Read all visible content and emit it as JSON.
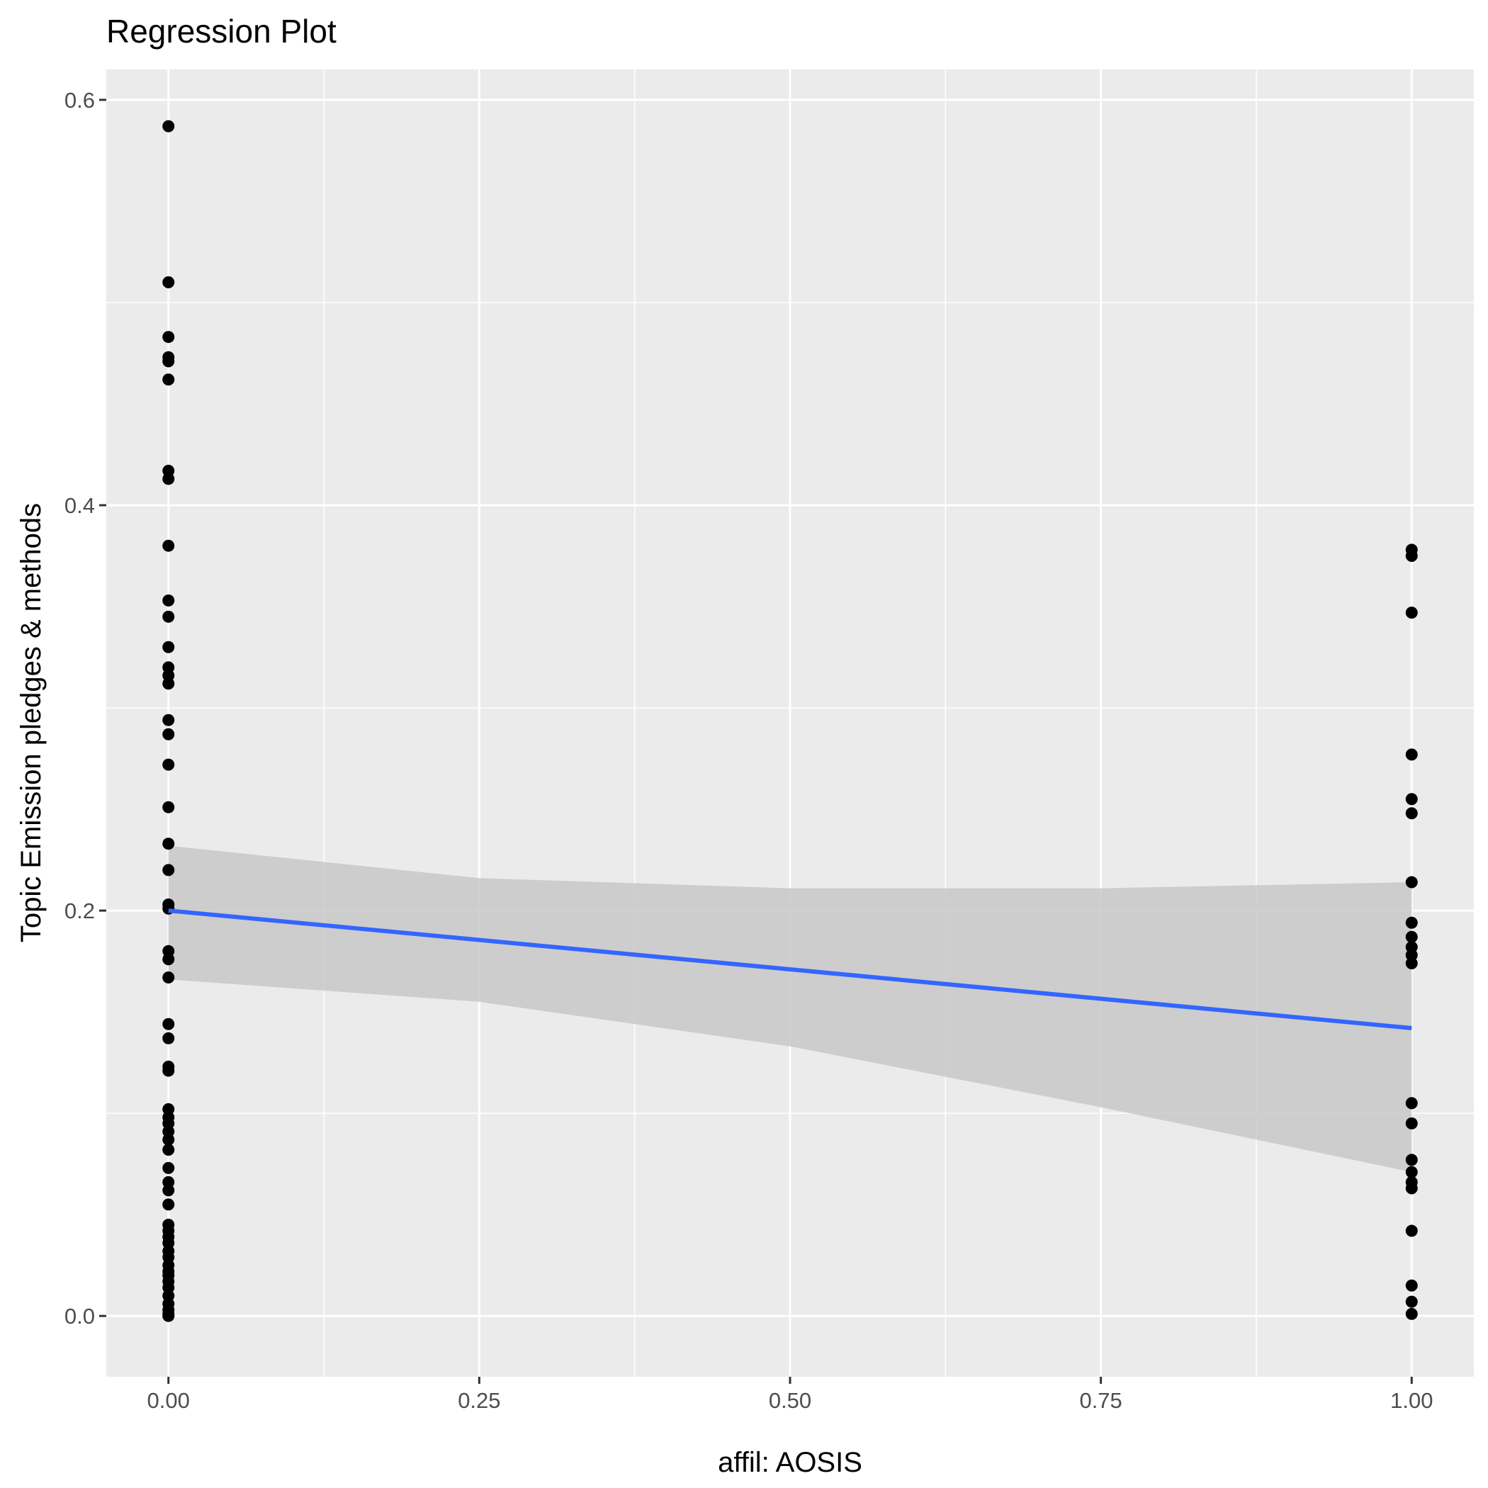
{
  "chart_data": {
    "type": "scatter",
    "title": "Regression Plot",
    "xlabel": "affil: AOSIS",
    "ylabel": "Topic Emission pledges & methods",
    "xlim": [
      -0.05,
      1.05
    ],
    "ylim": [
      -0.03,
      0.615
    ],
    "x_ticks": [
      0.0,
      0.25,
      0.5,
      0.75,
      1.0
    ],
    "x_tick_labels": [
      "0.00",
      "0.25",
      "0.50",
      "0.75",
      "1.00"
    ],
    "y_ticks": [
      0.0,
      0.2,
      0.4,
      0.6
    ],
    "y_tick_labels": [
      "0.0",
      "0.2",
      "0.4",
      "0.6"
    ],
    "grid": true,
    "legend": "none",
    "colors": {
      "panel": "#ebebeb",
      "grid": "#ffffff",
      "points": "#000000",
      "fit_line": "#3366ff",
      "ribbon": "#c8c8c8"
    },
    "points": {
      "x0": [
        0.587,
        0.51,
        0.483,
        0.473,
        0.471,
        0.462,
        0.417,
        0.413,
        0.38,
        0.353,
        0.345,
        0.33,
        0.32,
        0.316,
        0.312,
        0.294,
        0.287,
        0.272,
        0.251,
        0.233,
        0.22,
        0.203,
        0.201,
        0.18,
        0.176,
        0.167,
        0.144,
        0.137,
        0.123,
        0.121,
        0.102,
        0.098,
        0.095,
        0.091,
        0.087,
        0.082,
        0.073,
        0.066,
        0.062,
        0.055,
        0.045,
        0.042,
        0.039,
        0.036,
        0.032,
        0.029,
        0.025,
        0.022,
        0.02,
        0.017,
        0.014,
        0.01,
        0.006,
        0.003,
        0.001,
        0.0
      ],
      "x1": [
        0.378,
        0.375,
        0.347,
        0.277,
        0.255,
        0.248,
        0.214,
        0.194,
        0.187,
        0.182,
        0.178,
        0.174,
        0.105,
        0.095,
        0.077,
        0.071,
        0.066,
        0.063,
        0.042,
        0.015,
        0.007,
        0.001
      ]
    },
    "fit": {
      "x": [
        0.0,
        1.0
      ],
      "y": [
        0.2,
        0.142
      ]
    },
    "confidence_band": {
      "x": [
        0.0,
        0.25,
        0.5,
        0.75,
        1.0
      ],
      "lower": [
        0.166,
        0.155,
        0.133,
        0.103,
        0.071
      ],
      "upper": [
        0.232,
        0.216,
        0.211,
        0.211,
        0.214
      ]
    }
  }
}
